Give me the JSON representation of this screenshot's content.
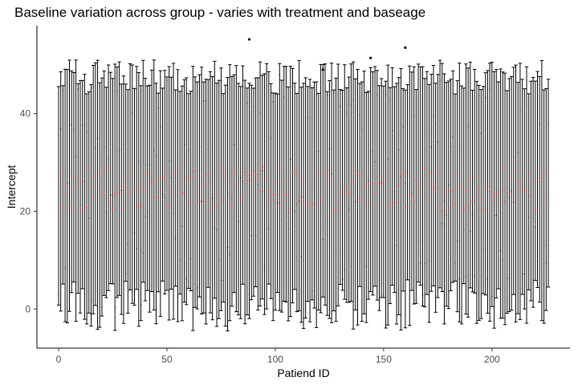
{
  "chart_data": {
    "type": "errorbar",
    "title": "Baseline variation across group - varies with treatment and baseage",
    "xlabel": "Patiend ID",
    "ylabel": "Intercept",
    "xlim": [
      -10,
      236
    ],
    "ylim": [
      -8,
      58
    ],
    "x_ticks": [
      0,
      50,
      100,
      150,
      200
    ],
    "y_ticks": [
      0,
      20,
      40
    ],
    "grid": false,
    "n_patients": 227,
    "point_color": "#ff0000",
    "bar_color": "#000000",
    "interval_summary": {
      "estimate_range": [
        20,
        29
      ],
      "lower_range": [
        -4.5,
        6
      ],
      "upper_range": [
        44,
        51
      ]
    },
    "outlier_upper_points": [
      {
        "x": 88,
        "y": 55.2
      },
      {
        "x": 144,
        "y": 51.4
      },
      {
        "x": 160,
        "y": 53.5
      },
      {
        "x": 122,
        "y": 49.0
      }
    ]
  }
}
